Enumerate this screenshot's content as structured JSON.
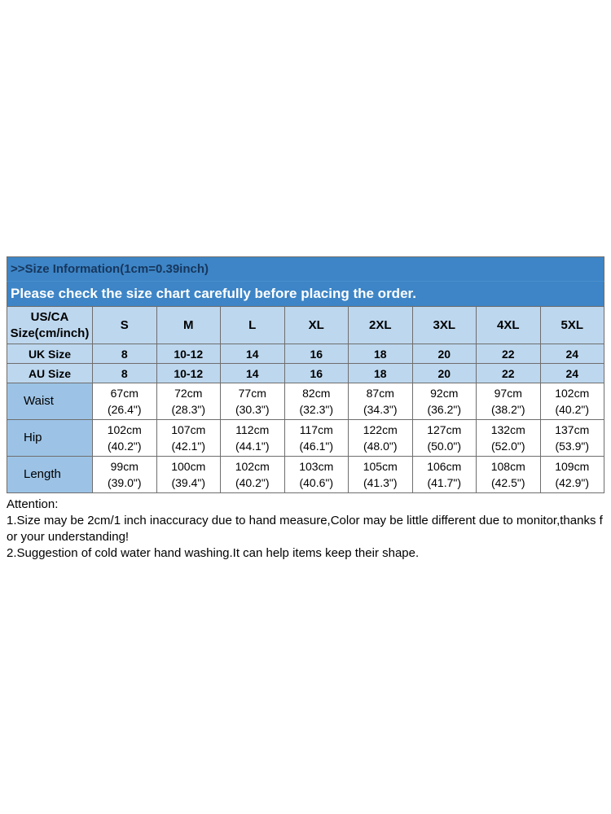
{
  "colors": {
    "header_blue": "#3d85c6",
    "light_blue": "#bdd7ee",
    "label_blue": "#9cc3e6",
    "title_text": "#17365d"
  },
  "banner": {
    "title": ">>Size Information(1cm=0.39inch)",
    "subtitle": "Please check the size chart carefully before placing the order."
  },
  "table": {
    "corner": {
      "line1": "US/CA",
      "line2": "Size(cm/inch)"
    },
    "size_headers": [
      "S",
      "M",
      "L",
      "XL",
      "2XL",
      "3XL",
      "4XL",
      "5XL"
    ],
    "uk_row": {
      "label": "UK Size",
      "values": [
        "8",
        "10-12",
        "14",
        "16",
        "18",
        "20",
        "22",
        "24"
      ]
    },
    "au_row": {
      "label": "AU  Size",
      "values": [
        "8",
        "10-12",
        "14",
        "16",
        "18",
        "20",
        "22",
        "24"
      ]
    },
    "measure_rows": [
      {
        "label": "Waist",
        "cells": [
          {
            "cm": "67cm",
            "inch": "(26.4\")"
          },
          {
            "cm": "72cm",
            "inch": "(28.3\")"
          },
          {
            "cm": "77cm",
            "inch": "(30.3\")"
          },
          {
            "cm": "82cm",
            "inch": "(32.3\")"
          },
          {
            "cm": "87cm",
            "inch": "(34.3\")"
          },
          {
            "cm": "92cm",
            "inch": "(36.2\")"
          },
          {
            "cm": "97cm",
            "inch": "(38.2\")"
          },
          {
            "cm": "102cm",
            "inch": "(40.2\")"
          }
        ]
      },
      {
        "label": "Hip",
        "cells": [
          {
            "cm": "102cm",
            "inch": "(40.2\")"
          },
          {
            "cm": "107cm",
            "inch": "(42.1\")"
          },
          {
            "cm": "112cm",
            "inch": "(44.1\")"
          },
          {
            "cm": "117cm",
            "inch": "(46.1\")"
          },
          {
            "cm": "122cm",
            "inch": "(48.0\")"
          },
          {
            "cm": "127cm",
            "inch": "(50.0\")"
          },
          {
            "cm": "132cm",
            "inch": "(52.0\")"
          },
          {
            "cm": "137cm",
            "inch": "(53.9\")"
          }
        ]
      },
      {
        "label": "Length",
        "cells": [
          {
            "cm": "99cm",
            "inch": "(39.0\")"
          },
          {
            "cm": "100cm",
            "inch": "(39.4\")"
          },
          {
            "cm": "102cm",
            "inch": "(40.2\")"
          },
          {
            "cm": "103cm",
            "inch": "(40.6\")"
          },
          {
            "cm": "105cm",
            "inch": "(41.3\")"
          },
          {
            "cm": "106cm",
            "inch": "(41.7\")"
          },
          {
            "cm": "108cm",
            "inch": "(42.5\")"
          },
          {
            "cm": "109cm",
            "inch": "(42.9\")"
          }
        ]
      }
    ]
  },
  "attention": {
    "heading": "Attention:",
    "line1": "1.Size may be 2cm/1 inch inaccuracy due to hand measure,Color may be little different due to monitor,thanks for your understanding!",
    "line2": "2.Suggestion of cold water hand washing.It can help items keep their shape."
  }
}
